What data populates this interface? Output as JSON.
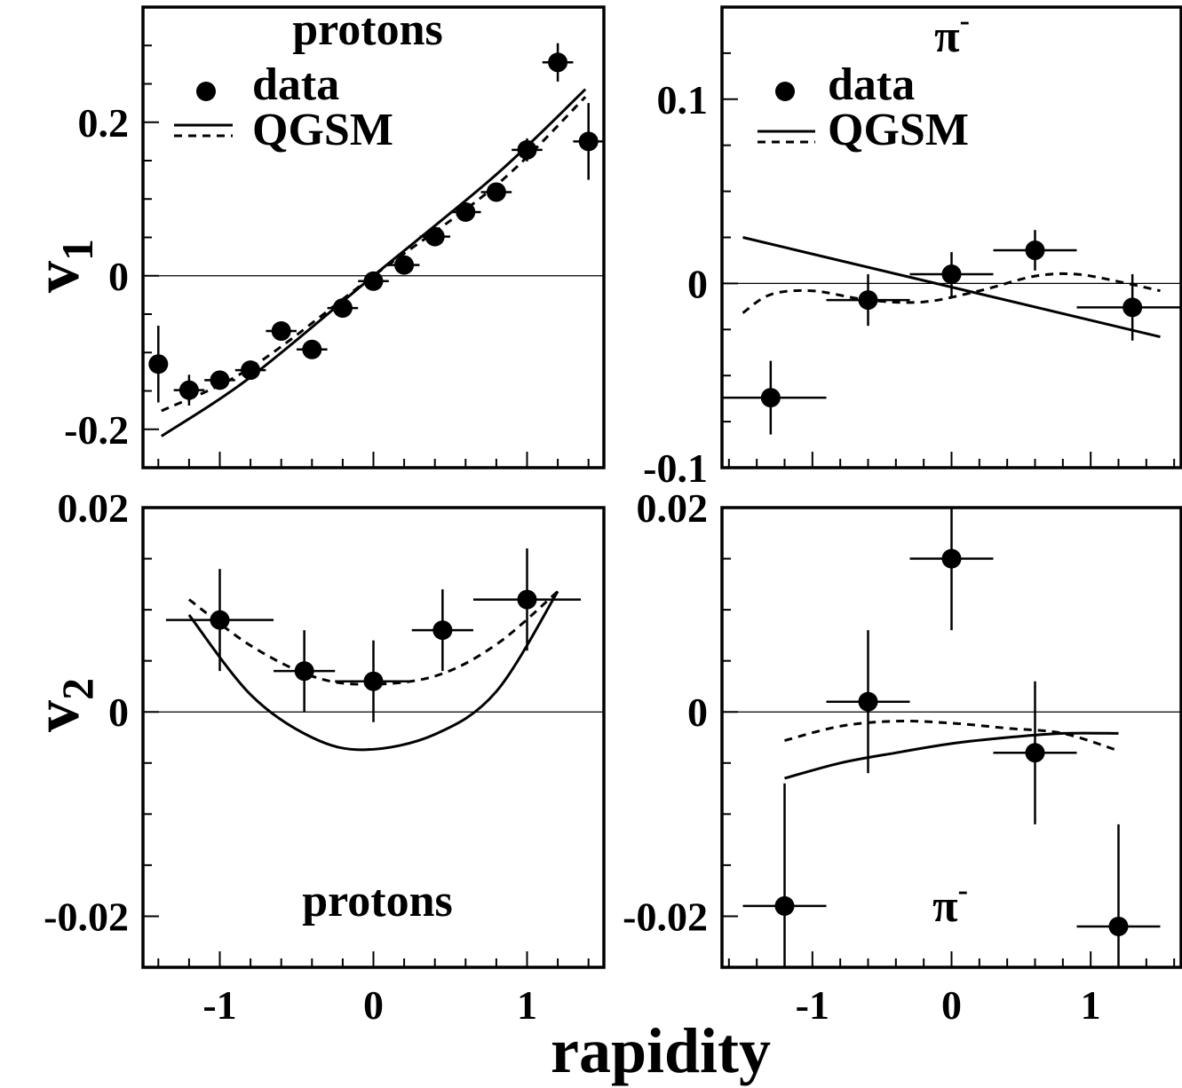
{
  "figure": {
    "v1_label": "v",
    "v1_sub": "1",
    "v2_label": "v",
    "v2_sub": "2",
    "xlabel": "rapidity"
  },
  "chart_data": [
    {
      "type": "scatter",
      "panel": "v1-protons",
      "title": "protons",
      "legend": [
        "data",
        "QGSM"
      ],
      "xlim": [
        -1.5,
        1.5
      ],
      "ylim": [
        -0.25,
        0.35
      ],
      "yticks": [
        -0.2,
        0,
        0.2
      ],
      "ytick_labels": [
        "-0.2",
        "0",
        "0.2"
      ],
      "xticks": [
        -1,
        0,
        1
      ],
      "xtick_labels": [
        "",
        "",
        ""
      ],
      "series": [
        {
          "name": "data",
          "x": [
            -1.4,
            -1.2,
            -1.0,
            -0.8,
            -0.6,
            -0.4,
            -0.2,
            0.0,
            0.2,
            0.4,
            0.6,
            0.8,
            1.0,
            1.2,
            1.4
          ],
          "y": [
            -0.115,
            -0.149,
            -0.136,
            -0.123,
            -0.072,
            -0.096,
            -0.042,
            -0.007,
            0.014,
            0.051,
            0.083,
            0.109,
            0.164,
            0.278,
            0.175
          ],
          "xerr": [
            0,
            0.1,
            0.1,
            0.1,
            0.1,
            0.1,
            0.1,
            0.1,
            0.1,
            0.1,
            0.1,
            0.1,
            0.1,
            0.1,
            0.1
          ],
          "yerr": [
            0.05,
            0.02,
            0.01,
            0.01,
            0.01,
            0.01,
            0.01,
            0.01,
            0.01,
            0.01,
            0.01,
            0.01,
            0.015,
            0.025,
            0.05
          ]
        },
        {
          "name": "QGSM",
          "style": "solid",
          "x": [
            -1.38,
            -0.8,
            0.0,
            0.8,
            1.38
          ],
          "y": [
            -0.209,
            -0.132,
            0.0,
            0.132,
            0.243
          ]
        },
        {
          "style": "dashed",
          "x": [
            -1.38,
            -0.8,
            0.0,
            0.8,
            1.38
          ],
          "y": [
            -0.176,
            -0.12,
            0.0,
            0.118,
            0.233
          ]
        }
      ]
    },
    {
      "type": "scatter",
      "panel": "v1-piminus",
      "title": "π",
      "title_sup": "-",
      "legend": [
        "data",
        "QGSM"
      ],
      "xlim": [
        -1.65,
        1.65
      ],
      "ylim": [
        -0.1,
        0.15
      ],
      "yticks": [
        -0.1,
        0,
        0.1
      ],
      "ytick_labels": [
        "-0.1",
        "0",
        "0.1"
      ],
      "xticks": [
        -1,
        0,
        1
      ],
      "xtick_labels": [
        "",
        "",
        ""
      ],
      "series": [
        {
          "name": "data",
          "x": [
            -1.3,
            -0.6,
            0.0,
            0.6,
            1.3
          ],
          "y": [
            -0.062,
            -0.009,
            0.005,
            0.018,
            -0.013
          ],
          "xerr": [
            0.4,
            0.3,
            0.3,
            0.3,
            0.4
          ],
          "yerr": [
            0.02,
            0.014,
            0.012,
            0.011,
            0.018
          ]
        },
        {
          "name": "QGSM",
          "style": "solid",
          "x": [
            -1.5,
            1.5
          ],
          "y": [
            0.025,
            -0.029
          ]
        },
        {
          "style": "dashed",
          "x": [
            -1.5,
            -1.3,
            -1.0,
            -0.6,
            -0.2,
            0.2,
            0.6,
            0.9,
            1.2,
            1.5
          ],
          "y": [
            -0.016,
            -0.006,
            -0.004,
            -0.009,
            -0.01,
            -0.004,
            0.004,
            0.005,
            0.001,
            -0.004
          ]
        }
      ]
    },
    {
      "type": "scatter",
      "panel": "v2-protons",
      "title": "protons",
      "xlim": [
        -1.5,
        1.5
      ],
      "ylim": [
        -0.025,
        0.02
      ],
      "yticks": [
        -0.02,
        0,
        0.02
      ],
      "ytick_labels": [
        "-0.02",
        "0",
        "0.02"
      ],
      "xticks": [
        -1,
        0,
        1
      ],
      "xtick_labels": [
        "-1",
        "0",
        "1"
      ],
      "series": [
        {
          "name": "data",
          "x": [
            -1.0,
            -0.45,
            0.0,
            0.45,
            1.0
          ],
          "y": [
            0.009,
            0.004,
            0.003,
            0.008,
            0.011
          ],
          "xerr": [
            0.35,
            0.2,
            0.25,
            0.2,
            0.35
          ],
          "yerr": [
            0.005,
            0.004,
            0.004,
            0.004,
            0.005
          ]
        },
        {
          "name": "QGSM",
          "style": "solid",
          "x": [
            -1.2,
            -0.8,
            -0.4,
            -0.05,
            0.4,
            0.8,
            1.2
          ],
          "y": [
            0.0095,
            0.0017,
            -0.0025,
            -0.0037,
            -0.0022,
            0.002,
            0.0118
          ]
        },
        {
          "style": "dashed",
          "x": [
            -1.2,
            -0.8,
            -0.4,
            -0.05,
            0.4,
            0.8,
            1.2
          ],
          "y": [
            0.011,
            0.0065,
            0.0035,
            0.0027,
            0.0035,
            0.0066,
            0.0118
          ]
        }
      ]
    },
    {
      "type": "scatter",
      "panel": "v2-piminus",
      "title": "π",
      "title_sup": "-",
      "xlim": [
        -1.65,
        1.65
      ],
      "ylim": [
        -0.025,
        0.02
      ],
      "yticks": [
        -0.02,
        0,
        0.02
      ],
      "ytick_labels": [
        "-0.02",
        "0",
        "0.02"
      ],
      "xticks": [
        -1,
        0,
        1
      ],
      "xtick_labels": [
        "-1",
        "0",
        "1"
      ],
      "series": [
        {
          "name": "data",
          "x": [
            -1.2,
            -0.6,
            0.0,
            0.6,
            1.2
          ],
          "y": [
            -0.019,
            0.001,
            0.015,
            -0.004,
            -0.021
          ],
          "xerr": [
            0.3,
            0.3,
            0.3,
            0.3,
            0.3
          ],
          "yerr": [
            0.012,
            0.007,
            0.007,
            0.007,
            0.01
          ]
        },
        {
          "name": "QGSM",
          "style": "solid",
          "x": [
            -1.2,
            -0.8,
            -0.4,
            0.0,
            0.4,
            0.8,
            1.2
          ],
          "y": [
            -0.0065,
            -0.005,
            -0.004,
            -0.0031,
            -0.0025,
            -0.0021,
            -0.0021
          ]
        },
        {
          "style": "dashed",
          "x": [
            -1.2,
            -0.8,
            -0.4,
            0.0,
            0.4,
            0.8,
            1.2
          ],
          "y": [
            -0.0028,
            -0.0014,
            -0.0009,
            -0.0011,
            -0.0016,
            -0.0021,
            -0.0038
          ]
        }
      ]
    }
  ]
}
